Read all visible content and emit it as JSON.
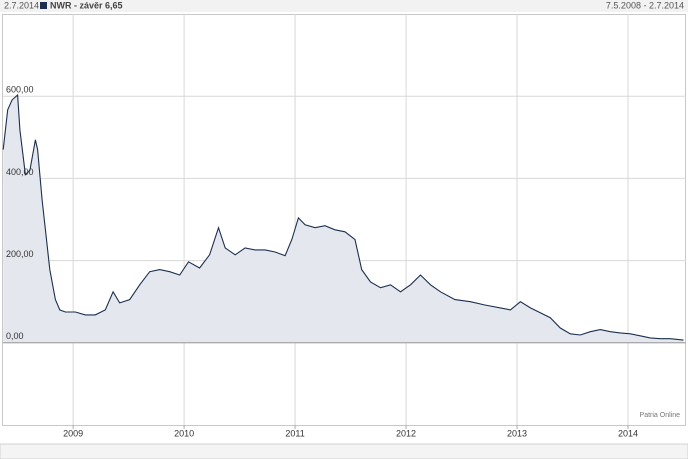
{
  "chart_data": {
    "type": "area",
    "date_label": "2.7.2014",
    "range_label": "7.5.2008 - 2.7.2014",
    "source": "Patria Online",
    "series": [
      {
        "name": "NWR - závěr 6,65",
        "color": "#1c2f4e",
        "fill": "#e4e7ee",
        "x": [
          2008.37,
          2008.41,
          2008.45,
          2008.5,
          2008.52,
          2008.57,
          2008.61,
          2008.66,
          2008.68,
          2008.72,
          2008.76,
          2008.79,
          2008.84,
          2008.88,
          2008.93,
          2009.02,
          2009.11,
          2009.2,
          2009.29,
          2009.36,
          2009.42,
          2009.51,
          2009.6,
          2009.69,
          2009.78,
          2009.87,
          2009.96,
          2010.04,
          2010.14,
          2010.23,
          2010.31,
          2010.37,
          2010.46,
          2010.55,
          2010.64,
          2010.73,
          2010.82,
          2010.91,
          2010.97,
          2011.03,
          2011.09,
          2011.18,
          2011.27,
          2011.36,
          2011.45,
          2011.54,
          2011.6,
          2011.68,
          2011.77,
          2011.86,
          2011.95,
          2012.04,
          2012.13,
          2012.22,
          2012.31,
          2012.44,
          2012.58,
          2012.71,
          2012.85,
          2012.94,
          2013.03,
          2013.12,
          2013.21,
          2013.3,
          2013.39,
          2013.48,
          2013.57,
          2013.66,
          2013.75,
          2013.84,
          2013.93,
          2014.02,
          2014.11,
          2014.2,
          2014.29,
          2014.38,
          2014.5
        ],
        "values": [
          470,
          567,
          591,
          603,
          518,
          409,
          420,
          494,
          470,
          348,
          251,
          178,
          105,
          80,
          75,
          75,
          68,
          68,
          80,
          124,
          97,
          105,
          141,
          173,
          178,
          173,
          165,
          197,
          182,
          214,
          280,
          231,
          214,
          231,
          226,
          226,
          221,
          212,
          251,
          304,
          287,
          280,
          285,
          275,
          270,
          251,
          178,
          148,
          134,
          141,
          124,
          141,
          165,
          141,
          124,
          105,
          100,
          92,
          85,
          80,
          100,
          85,
          73,
          61,
          36,
          22,
          19,
          27,
          32,
          27,
          24,
          22,
          17,
          12,
          10,
          10,
          6.65
        ]
      }
    ],
    "xlim": [
      2008.35,
      2014.5
    ],
    "ylim": [
      -200,
      800
    ],
    "xticks": [
      2009,
      2010,
      2011,
      2012,
      2013,
      2014
    ],
    "yticks": [
      {
        "value": 0,
        "label": "0,00"
      },
      {
        "value": 200,
        "label": "200,00"
      },
      {
        "value": 400,
        "label": "400,00"
      },
      {
        "value": 600,
        "label": "600,00"
      }
    ],
    "grid": true
  }
}
